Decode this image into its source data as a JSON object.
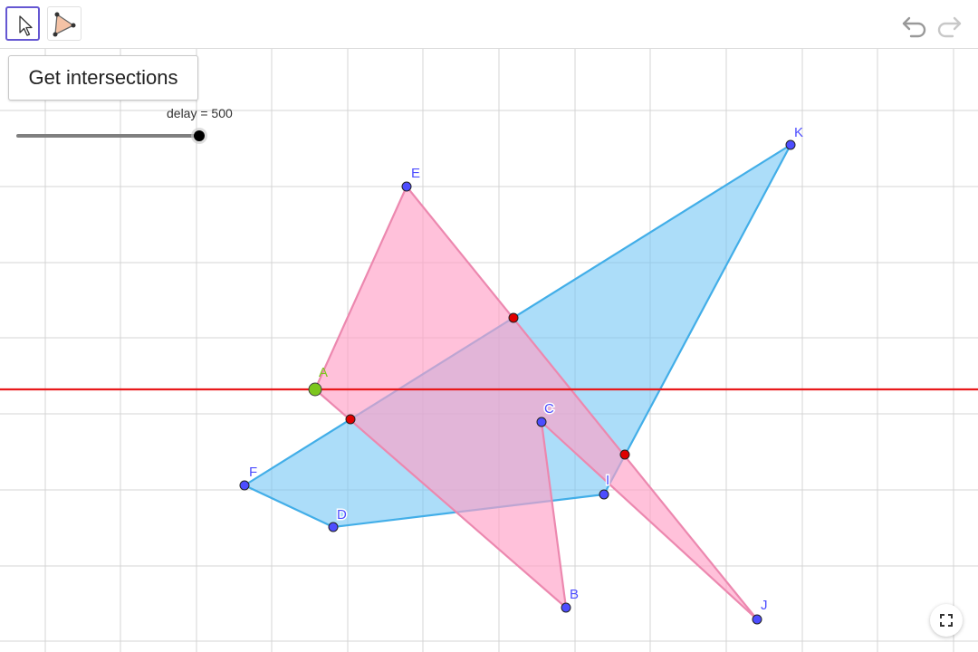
{
  "toolbar": {
    "tools": [
      {
        "name": "move",
        "icon": "cursor-arrow-icon",
        "selected": true
      },
      {
        "name": "polygon",
        "icon": "polygon-tool-icon",
        "selected": false
      }
    ],
    "undo_icon": "undo-icon",
    "redo_icon": "redo-icon"
  },
  "button": {
    "label": "Get intersections"
  },
  "slider": {
    "label": "delay = 500",
    "value": 500,
    "fraction": 1.0
  },
  "points": {
    "A": "A",
    "B": "B",
    "C": "C",
    "D": "D",
    "E": "E",
    "F": "F",
    "I": "I",
    "J": "J",
    "K": "K"
  },
  "colors": {
    "pink_fill": "#ff9fc6",
    "pink_stroke": "#ec88af",
    "blue_fill": "#74c6f5",
    "blue_stroke": "#42aee8",
    "line": "#e8191b",
    "point": "#4d4dff",
    "intersection": "#e00000",
    "point_a": "#7cc61d"
  },
  "fullscreen_icon": "fullscreen-icon"
}
